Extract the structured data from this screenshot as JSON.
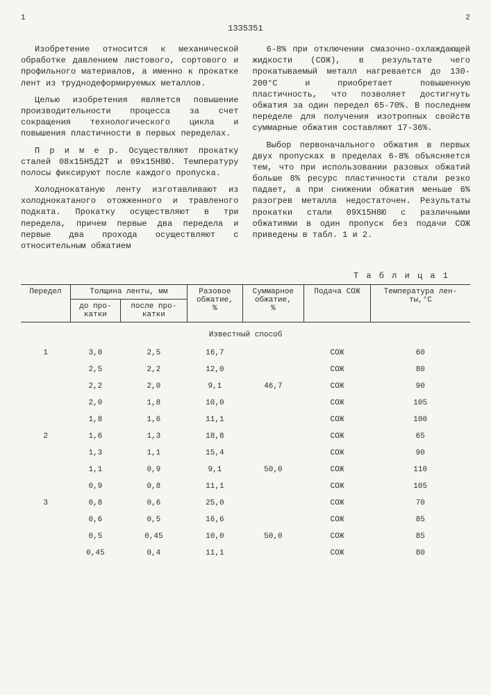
{
  "page_left": "1",
  "page_right": "2",
  "patent_number": "1335351",
  "left_column": {
    "p1": "Изобретение относится к механической обработке давлением листового, сортового и профильного материалов, а именно к прокатке лент из труднодеформируемых металлов.",
    "p2": "Целью изобретения является повышение производительности процесса за счет сокращения технологического цикла и повышения пластичности в первых переделах.",
    "p3": "П р и м е р. Осуществляют прокатку сталей 08х15Н5Д2Т и 09х15Н8Ю. Температуру полосы фиксируют после каждого пропуска.",
    "p4": "Холоднокатаную ленту изготавливают из холоднокатаного отожженного и травленого подката. Прокатку осуществляют в три передела, причем первые два передела и первые два прохода осуществляют с относительным обжатием"
  },
  "right_column": {
    "p1": "6-8% при отключении смазочно-охлаждающей жидкости (СОЖ), в результате чего прокатываемый металл нагревается до 130-200°C и приобретает повышенную пластичность, что позволяет достигнуть обжатия за один передел 65-70%. В последнем переделе для получения изотропных свойств суммарные обжатия составляют 17-36%.",
    "p2": "Выбор первоначального обжатия в первых двух пропусках в пределах 6-8% объясняется тем, что при использовании разовых обжатий больше 8% ресурс пластичности стали резко падает, а при снижении обжатия меньше 6% разогрев металла недостаточен. Результаты прокатки стали 09Х15Н8Ю с различными обжатиями в один пропуск без подачи СОЖ приведены в табл. 1 и 2."
  },
  "table1": {
    "label": "Т а б л и ц а 1",
    "headers": {
      "peredel": "Передел",
      "thickness": "Толщина ленты, мм",
      "before": "до про-\nкатки",
      "after": "после про-\nкатки",
      "single_reduction": "Разовое\nобжатие,\n%",
      "total_reduction": "Суммарное\nобжатие,\n%",
      "coolant": "Подача СОЖ",
      "temperature": "Температура лен-\nты,°C"
    },
    "section_title": "Известный способ",
    "rows": [
      {
        "peredel": "1",
        "before": "3,0",
        "after": "2,5",
        "single": "16,7",
        "total": "",
        "coolant": "СОЖ",
        "temp": "60"
      },
      {
        "peredel": "",
        "before": "2,5",
        "after": "2,2",
        "single": "12,0",
        "total": "",
        "coolant": "СОЖ",
        "temp": "80"
      },
      {
        "peredel": "",
        "before": "2,2",
        "after": "2,0",
        "single": "9,1",
        "total": "46,7",
        "coolant": "СОЖ",
        "temp": "90"
      },
      {
        "peredel": "",
        "before": "2,0",
        "after": "1,8",
        "single": "10,0",
        "total": "",
        "coolant": "СОЖ",
        "temp": "105"
      },
      {
        "peredel": "",
        "before": "1,8",
        "after": "1,6",
        "single": "11,1",
        "total": "",
        "coolant": "СОЖ",
        "temp": "100"
      },
      {
        "peredel": "2",
        "before": "1,6",
        "after": "1,3",
        "single": "18,8",
        "total": "",
        "coolant": "СОЖ",
        "temp": "65"
      },
      {
        "peredel": "",
        "before": "1,3",
        "after": "1,1",
        "single": "15,4",
        "total": "",
        "coolant": "СОЖ",
        "temp": "90"
      },
      {
        "peredel": "",
        "before": "1,1",
        "after": "0,9",
        "single": "9,1",
        "total": "50,0",
        "coolant": "СОЖ",
        "temp": "110"
      },
      {
        "peredel": "",
        "before": "0,9",
        "after": "0,8",
        "single": "11,1",
        "total": "",
        "coolant": "СОЖ",
        "temp": "105"
      },
      {
        "peredel": "3",
        "before": "0,8",
        "after": "0,6",
        "single": "25,0",
        "total": "",
        "coolant": "СОЖ",
        "temp": "70"
      },
      {
        "peredel": "",
        "before": "0,6",
        "after": "0,5",
        "single": "16,6",
        "total": "",
        "coolant": "СОЖ",
        "temp": "85"
      },
      {
        "peredel": "",
        "before": "0,5",
        "after": "0,45",
        "single": "10,0",
        "total": "50,0",
        "coolant": "СОЖ",
        "temp": "85"
      },
      {
        "peredel": "",
        "before": "0,45",
        "after": "0,4",
        "single": "11,1",
        "total": "",
        "coolant": "СОЖ",
        "temp": "80"
      }
    ]
  }
}
